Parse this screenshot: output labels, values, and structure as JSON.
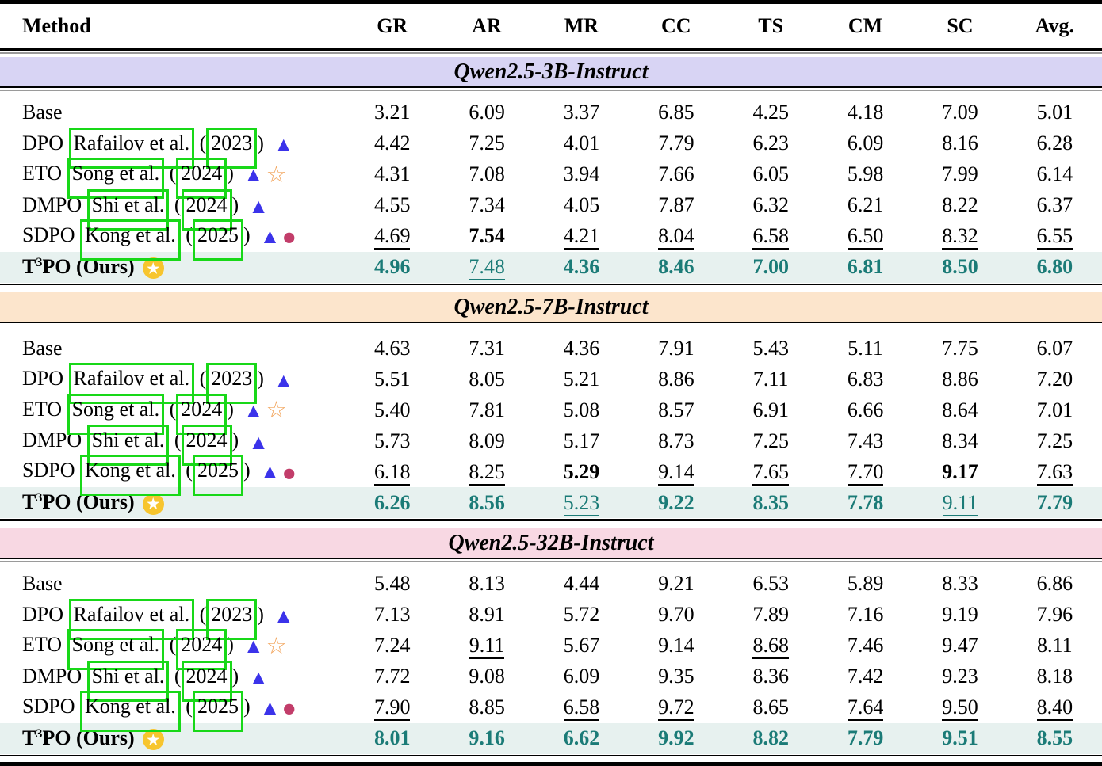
{
  "header": {
    "columns": [
      "Method",
      "GR",
      "AR",
      "MR",
      "CC",
      "TS",
      "CM",
      "SC",
      "Avg."
    ]
  },
  "colors": {
    "section1_band_bg": "#d8d4f4",
    "section2_band_bg": "#fce5cc",
    "section3_band_bg": "#f8d8e3",
    "ours_row_bg": "#e7f1ef",
    "ours_text_teal": "#1b7b77",
    "annotation_box_green": "#18d818",
    "triangle_blue": "#3b33ea",
    "circle_crimson": "#c23d6a",
    "star_outline_orange": "#f2a55d",
    "badge_gold": "#f7c52e"
  },
  "icon_legend": {
    "triangle-icon": "▲",
    "circle-icon": "●",
    "star-outline-icon": "☆",
    "star-badge-icon": "★"
  },
  "style_legend": {
    "p": "plain",
    "b": "bold (best)",
    "u": "underline (second best)"
  },
  "sections": [
    {
      "title": "Qwen2.5-3B-Instruct",
      "band_class": "band-3b",
      "rows": [
        {
          "method": "Base",
          "values": [
            "3.21",
            "6.09",
            "3.37",
            "6.85",
            "4.25",
            "4.18",
            "7.09",
            "5.01"
          ],
          "styles": [
            "p",
            "p",
            "p",
            "p",
            "p",
            "p",
            "p",
            "p"
          ]
        },
        {
          "method": "DPO",
          "cite_author": "Rafailov et al.",
          "cite_year": "2023",
          "icons": [
            "triangle-icon"
          ],
          "values": [
            "4.42",
            "7.25",
            "4.01",
            "7.79",
            "6.23",
            "6.09",
            "8.16",
            "6.28"
          ],
          "styles": [
            "p",
            "p",
            "p",
            "p",
            "p",
            "p",
            "p",
            "p"
          ]
        },
        {
          "method": "ETO",
          "cite_author": "Song et al.",
          "cite_year": "2024",
          "icons": [
            "triangle-icon",
            "star-outline-icon"
          ],
          "values": [
            "4.31",
            "7.08",
            "3.94",
            "7.66",
            "6.05",
            "5.98",
            "7.99",
            "6.14"
          ],
          "styles": [
            "p",
            "p",
            "p",
            "p",
            "p",
            "p",
            "p",
            "p"
          ]
        },
        {
          "method": "DMPO",
          "cite_author": "Shi et al.",
          "cite_year": "2024",
          "icons": [
            "triangle-icon"
          ],
          "values": [
            "4.55",
            "7.34",
            "4.05",
            "7.87",
            "6.32",
            "6.21",
            "8.22",
            "6.37"
          ],
          "styles": [
            "p",
            "p",
            "p",
            "p",
            "p",
            "p",
            "p",
            "p"
          ]
        },
        {
          "method": "SDPO",
          "cite_author": "Kong et al.",
          "cite_year": "2025",
          "icons": [
            "triangle-icon",
            "circle-icon"
          ],
          "values": [
            "4.69",
            "7.54",
            "4.21",
            "8.04",
            "6.58",
            "6.50",
            "8.32",
            "6.55"
          ],
          "styles": [
            "u",
            "b",
            "u",
            "u",
            "u",
            "u",
            "u",
            "u"
          ]
        },
        {
          "method": "T3PO (Ours)",
          "display": {
            "pre": "T",
            "sup": "3",
            "post": "PO (Ours)"
          },
          "icons": [
            "star-badge-icon"
          ],
          "ours": true,
          "values": [
            "4.96",
            "7.48",
            "4.36",
            "8.46",
            "7.00",
            "6.81",
            "8.50",
            "6.80"
          ],
          "styles": [
            "b",
            "u",
            "b",
            "b",
            "b",
            "b",
            "b",
            "b"
          ]
        }
      ]
    },
    {
      "title": "Qwen2.5-7B-Instruct",
      "band_class": "band-7b",
      "rows": [
        {
          "method": "Base",
          "values": [
            "4.63",
            "7.31",
            "4.36",
            "7.91",
            "5.43",
            "5.11",
            "7.75",
            "6.07"
          ],
          "styles": [
            "p",
            "p",
            "p",
            "p",
            "p",
            "p",
            "p",
            "p"
          ]
        },
        {
          "method": "DPO",
          "cite_author": "Rafailov et al.",
          "cite_year": "2023",
          "icons": [
            "triangle-icon"
          ],
          "values": [
            "5.51",
            "8.05",
            "5.21",
            "8.86",
            "7.11",
            "6.83",
            "8.86",
            "7.20"
          ],
          "styles": [
            "p",
            "p",
            "p",
            "p",
            "p",
            "p",
            "p",
            "p"
          ]
        },
        {
          "method": "ETO",
          "cite_author": "Song et al.",
          "cite_year": "2024",
          "icons": [
            "triangle-icon",
            "star-outline-icon"
          ],
          "values": [
            "5.40",
            "7.81",
            "5.08",
            "8.57",
            "6.91",
            "6.66",
            "8.64",
            "7.01"
          ],
          "styles": [
            "p",
            "p",
            "p",
            "p",
            "p",
            "p",
            "p",
            "p"
          ]
        },
        {
          "method": "DMPO",
          "cite_author": "Shi et al.",
          "cite_year": "2024",
          "icons": [
            "triangle-icon"
          ],
          "values": [
            "5.73",
            "8.09",
            "5.17",
            "8.73",
            "7.25",
            "7.43",
            "8.34",
            "7.25"
          ],
          "styles": [
            "p",
            "p",
            "p",
            "p",
            "p",
            "p",
            "p",
            "p"
          ]
        },
        {
          "method": "SDPO",
          "cite_author": "Kong et al.",
          "cite_year": "2025",
          "icons": [
            "triangle-icon",
            "circle-icon"
          ],
          "values": [
            "6.18",
            "8.25",
            "5.29",
            "9.14",
            "7.65",
            "7.70",
            "9.17",
            "7.63"
          ],
          "styles": [
            "u",
            "u",
            "b",
            "u",
            "u",
            "u",
            "b",
            "u"
          ]
        },
        {
          "method": "T3PO (Ours)",
          "display": {
            "pre": "T",
            "sup": "3",
            "post": "PO (Ours)"
          },
          "icons": [
            "star-badge-icon"
          ],
          "ours": true,
          "values": [
            "6.26",
            "8.56",
            "5.23",
            "9.22",
            "8.35",
            "7.78",
            "9.11",
            "7.79"
          ],
          "styles": [
            "b",
            "b",
            "u",
            "b",
            "b",
            "b",
            "u",
            "b"
          ]
        }
      ]
    },
    {
      "title": "Qwen2.5-32B-Instruct",
      "band_class": "band-32b",
      "rows": [
        {
          "method": "Base",
          "values": [
            "5.48",
            "8.13",
            "4.44",
            "9.21",
            "6.53",
            "5.89",
            "8.33",
            "6.86"
          ],
          "styles": [
            "p",
            "p",
            "p",
            "p",
            "p",
            "p",
            "p",
            "p"
          ]
        },
        {
          "method": "DPO",
          "cite_author": "Rafailov et al.",
          "cite_year": "2023",
          "icons": [
            "triangle-icon"
          ],
          "values": [
            "7.13",
            "8.91",
            "5.72",
            "9.70",
            "7.89",
            "7.16",
            "9.19",
            "7.96"
          ],
          "styles": [
            "p",
            "p",
            "p",
            "p",
            "p",
            "p",
            "p",
            "p"
          ]
        },
        {
          "method": "ETO",
          "cite_author": "Song et al.",
          "cite_year": "2024",
          "icons": [
            "triangle-icon",
            "star-outline-icon"
          ],
          "values": [
            "7.24",
            "9.11",
            "5.67",
            "9.14",
            "8.68",
            "7.46",
            "9.47",
            "8.11"
          ],
          "styles": [
            "p",
            "u",
            "p",
            "p",
            "u",
            "p",
            "p",
            "p"
          ]
        },
        {
          "method": "DMPO",
          "cite_author": "Shi et al.",
          "cite_year": "2024",
          "icons": [
            "triangle-icon"
          ],
          "values": [
            "7.72",
            "9.08",
            "6.09",
            "9.35",
            "8.36",
            "7.42",
            "9.23",
            "8.18"
          ],
          "styles": [
            "p",
            "p",
            "p",
            "p",
            "p",
            "p",
            "p",
            "p"
          ]
        },
        {
          "method": "SDPO",
          "cite_author": "Kong et al.",
          "cite_year": "2025",
          "icons": [
            "triangle-icon",
            "circle-icon"
          ],
          "values": [
            "7.90",
            "8.85",
            "6.58",
            "9.72",
            "8.65",
            "7.64",
            "9.50",
            "8.40"
          ],
          "styles": [
            "u",
            "p",
            "u",
            "u",
            "p",
            "u",
            "u",
            "u"
          ]
        },
        {
          "method": "T3PO (Ours)",
          "display": {
            "pre": "T",
            "sup": "3",
            "post": "PO (Ours)"
          },
          "icons": [
            "star-badge-icon"
          ],
          "ours": true,
          "values": [
            "8.01",
            "9.16",
            "6.62",
            "9.92",
            "8.82",
            "7.79",
            "9.51",
            "8.55"
          ],
          "styles": [
            "b",
            "b",
            "b",
            "b",
            "b",
            "b",
            "b",
            "b"
          ]
        }
      ]
    }
  ]
}
